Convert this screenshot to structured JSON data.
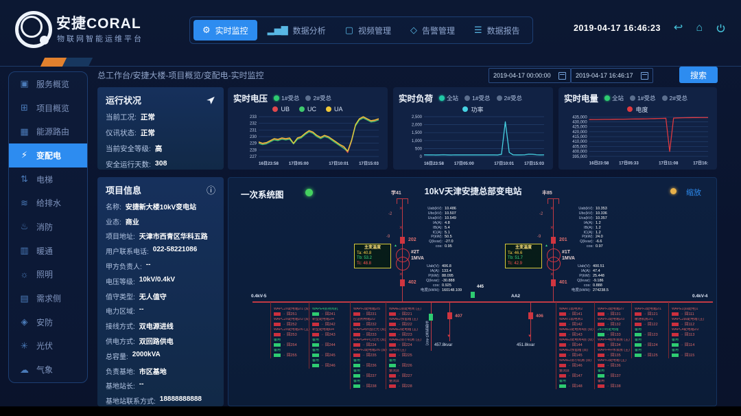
{
  "header": {
    "logo_title": "安捷CORAL",
    "logo_subtitle": "物联网智能运维平台",
    "datetime": "2019-04-17 16:46:23",
    "nav": [
      {
        "label": "实时监控",
        "icon": "gear-icon",
        "glyph": "⚙",
        "active": true
      },
      {
        "label": "数据分析",
        "icon": "bar-chart-icon",
        "glyph": "▂▅▇",
        "active": false
      },
      {
        "label": "视频管理",
        "icon": "monitor-icon",
        "glyph": "▢",
        "active": false
      },
      {
        "label": "告警管理",
        "icon": "shield-icon",
        "glyph": "◇",
        "active": false
      },
      {
        "label": "数据报告",
        "icon": "database-icon",
        "glyph": "☰",
        "active": false
      }
    ]
  },
  "sidebar": {
    "items": [
      {
        "label": "服务概览",
        "icon": "overview-icon",
        "glyph": "▣",
        "active": false
      },
      {
        "label": "项目概览",
        "icon": "projects-icon",
        "glyph": "⊞",
        "active": false
      },
      {
        "label": "能源路由",
        "icon": "energy-router-icon",
        "glyph": "▦",
        "active": false
      },
      {
        "label": "变配电",
        "icon": "power-distribution-icon",
        "glyph": "⚡",
        "active": true
      },
      {
        "label": "电梯",
        "icon": "elevator-icon",
        "glyph": "⇅",
        "active": false
      },
      {
        "label": "给排水",
        "icon": "water-icon",
        "glyph": "≋",
        "active": false
      },
      {
        "label": "消防",
        "icon": "fire-icon",
        "glyph": "♨",
        "active": false
      },
      {
        "label": "暖通",
        "icon": "hvac-icon",
        "glyph": "▥",
        "active": false
      },
      {
        "label": "照明",
        "icon": "lighting-icon",
        "glyph": "☼",
        "active": false
      },
      {
        "label": "需求侧",
        "icon": "demand-side-icon",
        "glyph": "▤",
        "active": false
      },
      {
        "label": "安防",
        "icon": "security-icon",
        "glyph": "◈",
        "active": false
      },
      {
        "label": "光伏",
        "icon": "solar-icon",
        "glyph": "✳",
        "active": false
      },
      {
        "label": "气象",
        "icon": "weather-icon",
        "glyph": "☁",
        "active": false
      }
    ]
  },
  "toolbar": {
    "breadcrumb": "总工作台/安捷大楼-项目概览/变配电-实时监控",
    "date_from": "2019-04-17 00:00:00",
    "date_to": "2019-04-17 16:46:17",
    "search_label": "搜索"
  },
  "status_panel": {
    "title": "运行状况",
    "rows": [
      {
        "label": "当前工况",
        "value": "正常"
      },
      {
        "label": "仪讯状态",
        "value": "正常"
      },
      {
        "label": "当前安全等级",
        "value": "高"
      },
      {
        "label": "安全运行天数",
        "value": "308"
      }
    ]
  },
  "project_panel": {
    "title": "项目信息",
    "rows": [
      {
        "label": "名称",
        "value": "安捷新大楼10kV变电站"
      },
      {
        "label": "业态",
        "value": "商业"
      },
      {
        "label": "项目地址",
        "value": "天津市西青区华科五路"
      },
      {
        "label": "用户联系电话",
        "value": "022-58221086"
      },
      {
        "label": "甲方负责人",
        "value": "--"
      },
      {
        "label": "电压等级",
        "value": "10kV/0.4kV"
      },
      {
        "label": "值守类型",
        "value": "无人值守"
      },
      {
        "label": "电力区域",
        "value": "--"
      },
      {
        "label": "接线方式",
        "value": "双电源进线"
      },
      {
        "label": "供电方式",
        "value": "双回路供电"
      },
      {
        "label": "总容量",
        "value": "2000kVA"
      },
      {
        "label": "负责基地",
        "value": "市区基地"
      },
      {
        "label": "基地站长",
        "value": "--"
      },
      {
        "label": "基地站联系方式",
        "value": "18888888888"
      }
    ]
  },
  "charts": [
    {
      "title": "实时电压",
      "toggles": [
        {
          "label": "1#受总",
          "on": true
        },
        {
          "label": "2#受总",
          "on": false
        }
      ],
      "toggle_on_color": "#2ecc71",
      "chart_data": {
        "type": "line",
        "ylim": [
          227,
          233
        ],
        "yticks": [
          227,
          228,
          229,
          230,
          231,
          232,
          233
        ],
        "ytick_labels": [
          "227",
          "228",
          "229",
          "230",
          "231",
          "232",
          "233"
        ],
        "xticks": [
          "16日23:58",
          "17日05:00",
          "17日10:01",
          "17日15:03"
        ],
        "series": [
          {
            "name": "UB",
            "color": "#e0484d",
            "values": [
              229.1,
              228.9,
              229.0,
              229.3,
              229.6,
              229.5,
              229.7,
              229.6,
              229.7,
              228.9,
              229.7,
              229.9,
              230.4,
              230.8,
              230.6,
              230.1,
              229.8,
              230.1,
              229.9,
              229.5,
              229.1,
              228.7,
              228.3,
              227.6,
              229.3,
              231.7,
              232.6,
              232.9,
              232.6,
              232.3,
              232.4,
              232.6
            ]
          },
          {
            "name": "UC",
            "color": "#3fc96e",
            "values": [
              229.0,
              228.8,
              228.9,
              229.2,
              229.5,
              229.4,
              229.6,
              229.5,
              229.6,
              228.9,
              229.6,
              229.8,
              230.3,
              230.7,
              230.5,
              230.0,
              229.7,
              230.0,
              229.8,
              229.4,
              229.0,
              228.6,
              228.2,
              227.8,
              229.4,
              231.6,
              232.5,
              232.8,
              232.5,
              232.2,
              232.3,
              232.5
            ]
          },
          {
            "name": "UA",
            "color": "#f0c838",
            "values": [
              229.2,
              229.0,
              229.1,
              229.4,
              229.7,
              229.6,
              229.8,
              229.7,
              229.8,
              229.0,
              229.8,
              230.0,
              230.5,
              230.9,
              230.7,
              230.2,
              229.9,
              230.2,
              230.0,
              229.6,
              229.2,
              228.8,
              228.5,
              227.8,
              229.5,
              231.8,
              232.7,
              233.0,
              232.7,
              232.4,
              232.5,
              232.7
            ]
          }
        ]
      }
    },
    {
      "title": "实时负荷",
      "toggles": [
        {
          "label": "全站",
          "on": true
        },
        {
          "label": "1#受总",
          "on": false
        },
        {
          "label": "2#受总",
          "on": false
        }
      ],
      "toggle_on_color": "#20c9a6",
      "chart_data": {
        "type": "line",
        "ylim": [
          0,
          2500
        ],
        "yticks": [
          0,
          500,
          1000,
          1500,
          2000,
          2500
        ],
        "ytick_labels": [
          "0",
          "500",
          "1,000",
          "1,500",
          "2,000",
          "2,500"
        ],
        "xticks": [
          "16日23:58",
          "17日05:00",
          "17日10:01",
          "17日15:03"
        ],
        "series": [
          {
            "name": "功率",
            "color": "#46d2e2",
            "values": [
              105,
              98,
              102,
              95,
              100,
              108,
              100,
              96,
              103,
              99,
              101,
              100,
              97,
              104,
              100,
              98,
              102,
              99,
              100,
              96,
              140,
              2180,
              260,
              105,
              98,
              100,
              104,
              150,
              145,
              108,
              100,
              102
            ]
          }
        ]
      }
    },
    {
      "title": "实时电量",
      "toggles": [
        {
          "label": "全站",
          "on": true
        },
        {
          "label": "1#受总",
          "on": false
        },
        {
          "label": "2#受总",
          "on": false
        }
      ],
      "toggle_on_color": "#2ecc71",
      "chart_data": {
        "type": "line",
        "ylim": [
          395000,
          435000
        ],
        "yticks": [
          395000,
          400000,
          405000,
          410000,
          415000,
          420000,
          425000,
          430000,
          435000
        ],
        "ytick_labels": [
          "395,000",
          "400,000",
          "405,000",
          "410,000",
          "415,000",
          "420,000",
          "425,000",
          "430,000",
          "435,000"
        ],
        "xticks": [
          "16日23:58",
          "17日05:33",
          "17日11:08",
          "17日16:"
        ],
        "series": [
          {
            "name": "电度",
            "color": "#e0393f",
            "values": [
              432300,
              432350,
              432400,
              432450,
              432500,
              432550,
              432600,
              432650,
              432700,
              432750,
              432800,
              432850,
              432900,
              432950,
              433000,
              433100,
              433200,
              433300,
              433400,
              433500,
              433600,
              400000,
              433800,
              434000,
              434100,
              434200,
              434250,
              434300,
              434300,
              434350,
              434400,
              434400
            ]
          }
        ]
      }
    }
  ],
  "diagram": {
    "panel_title": "一次系统图",
    "station_title": "10kV天津安捷总部变电站",
    "zoom_label": "缩放",
    "tie_breaker": "445",
    "incomers": [
      {
        "feeder": "学41",
        "disc1": "-2",
        "disc2": "-9",
        "breaker_hv": "202",
        "transformer": "#2T",
        "capacity": "1MVA",
        "breaker_lv": "402",
        "temp": {
          "title": "主变温度",
          "ta": "Ta:  40.8",
          "tb": "Tb:  53.2",
          "tc": "Tc:  48.8"
        },
        "hv_readout": [
          [
            "Uab(kV):",
            "10.486"
          ],
          [
            "Ubc(kV):",
            "10.507"
          ],
          [
            "Uca(kV):",
            "10.549"
          ],
          [
            "IA(A):",
            "4.8"
          ],
          [
            "IB(A):",
            "5.4"
          ],
          [
            "IC(A):",
            "5.1"
          ],
          [
            "P(kW):",
            "50.5"
          ],
          [
            "Q(kvar):",
            "-27.0"
          ],
          [
            "cos:",
            "0.95"
          ]
        ],
        "lv_readout": [
          [
            "Uab(V):",
            "406.8"
          ],
          [
            "IA(A):",
            "133.4"
          ],
          [
            "P(kW):",
            "88.095"
          ],
          [
            "Q(kvar):",
            "-30.888"
          ],
          [
            "cos:",
            "0.925"
          ],
          [
            "电度(kWH):",
            "160148.109"
          ]
        ]
      },
      {
        "feeder": "丰85",
        "disc1": "-2",
        "disc2": "-9",
        "breaker_hv": "201",
        "transformer": "#1T",
        "capacity": "1MVA",
        "breaker_lv": "401",
        "temp": {
          "title": "主变温度",
          "ta": "Ta:  46.6",
          "tb": "Tb:  51.7",
          "tc": "Tc:  42.9"
        },
        "hv_readout": [
          [
            "Uab(kV):",
            "10.353"
          ],
          [
            "Ubc(kV):",
            "10.336"
          ],
          [
            "Uca(kV):",
            "10.357"
          ],
          [
            "IA(A):",
            "1.2"
          ],
          [
            "IB(A):",
            "1.2"
          ],
          [
            "IC(A):",
            "1.2"
          ],
          [
            "P(kW):",
            "24.0"
          ],
          [
            "Q(kvar):",
            "-6.6"
          ],
          [
            "cos:",
            "0.97"
          ]
        ],
        "lv_readout": [
          [
            "Uab(V):",
            "400.51"
          ],
          [
            "IA(A):",
            "47.4"
          ],
          [
            "P(kW):",
            "25.448"
          ],
          [
            "Q(kvar):",
            "-9.186"
          ],
          [
            "cos:",
            "0.888"
          ],
          [
            "电度(kWH):",
            "274238.5"
          ]
        ]
      }
    ],
    "cap_banks": [
      {
        "breaker": "407",
        "kvar": "457.8kvar",
        "vlabel": "补偿电容(0.4kV)"
      },
      {
        "breaker": "406",
        "kvar": "451.8kvar",
        "vlabel": ""
      }
    ],
    "sections": [
      {
        "bus_label": "0.4kV-5",
        "bus_label_right": "",
        "columns": [
          [
            {
              "n": "WAPC2X配电箱2/1 (双)",
              "id": "回251",
              "s": "r"
            },
            {
              "n": "WAPC2X配电箱2/2 (双)",
              "id": "回252",
              "s": "r"
            },
            {
              "n": "WAPC2X配电箱2/6 (主)",
              "id": "回253",
              "s": "r"
            },
            {
              "n": "备用",
              "id": "回254",
              "s": "g"
            },
            {
              "n": "备用",
              "id": "回255",
              "s": "g"
            }
          ],
          [
            {
              "n": "WAPE4层排风机",
              "id": "回241",
              "s": "g"
            },
            {
              "n": "新型配电箱2/4",
              "id": "回242",
              "s": "r"
            },
            {
              "n": "新型配电箱6/4",
              "id": "回243",
              "s": "r"
            },
            {
              "n": "备用",
              "id": "回244",
              "s": "g"
            },
            {
              "n": "备用",
              "id": "回245",
              "s": "g"
            },
            {
              "n": "备用",
              "id": "回246",
              "s": "g"
            }
          ],
          [
            {
              "n": "WAPF2配电箱2/5",
              "id": "回231",
              "s": "r"
            },
            {
              "n": "应急照明箱2/2",
              "id": "回232",
              "s": "r"
            },
            {
              "n": "WAPG4外围泛光 (双)",
              "id": "回233",
              "s": "r"
            },
            {
              "n": "WAPG4中心泛光 (双)",
              "id": "回234",
              "s": "r"
            },
            {
              "n": "WAPF2配电箱2/6 (双)",
              "id": "回235",
              "s": "r"
            },
            {
              "n": "备用",
              "id": "回236",
              "s": "g"
            },
            {
              "n": "备用",
              "id": "回237",
              "s": "g"
            },
            {
              "n": "备用",
              "id": "回238",
              "s": "g"
            }
          ],
          [
            {
              "n": "WAAE1层配电间 (主)",
              "id": "回221",
              "s": "r"
            },
            {
              "n": "WAAE2预留箱 (主)",
              "id": "回222",
              "s": "r"
            },
            {
              "n": "WAAE2配电箱 (主)",
              "id": "回223",
              "s": "r"
            },
            {
              "n": "WAAE2层小机房 (主)",
              "id": "回224",
              "s": "r"
            },
            {
              "n": "弱电间 (主)",
              "id": "回225",
              "s": "r"
            },
            {
              "n": "备用",
              "id": "回226",
              "s": "g"
            },
            {
              "n": "整流屏",
              "id": "回227",
              "s": "r"
            },
            {
              "n": "整流屏",
              "id": "回228",
              "s": "r"
            }
          ]
        ]
      },
      {
        "bus_label": "AA2",
        "bus_label_right": "0.4kV-4",
        "columns": [
          [
            {
              "n": "WAAT1弱电间2",
              "id": "回141",
              "s": "r"
            },
            {
              "n": "WAAT1弱电间1",
              "id": "回142",
              "s": "r"
            },
            {
              "n": "WAAE1配电间4层 (双)",
              "id": "回143",
              "s": "r"
            },
            {
              "n": "WAAE2配电间4层 (双)",
              "id": "回144",
              "s": "r"
            },
            {
              "n": "WAAE2预留箱 (双)",
              "id": "回145",
              "s": "r"
            },
            {
              "n": "WAAE2层小机房 (双)",
              "id": "回146",
              "s": "r"
            },
            {
              "n": "整流屏",
              "id": "回147",
              "s": "r"
            },
            {
              "n": "备用",
              "id": "回148",
              "s": "g"
            }
          ],
          [
            {
              "n": "WAPF2配电箱2/7",
              "id": "回131",
              "s": "r"
            },
            {
              "n": "WAPF2配电箱2/3",
              "id": "回132",
              "s": "r"
            },
            {
              "n": "24小时配电箱",
              "id": "回133",
              "s": "g"
            },
            {
              "n": "WAPF4给水泵房 (主)",
              "id": "回134",
              "s": "r"
            },
            {
              "n": "WAPF4中水泵房 (主)",
              "id": "回135",
              "s": "r"
            },
            {
              "n": "WAPF2配电箱 (主)",
              "id": "回136",
              "s": "r"
            },
            {
              "n": "备用",
              "id": "回137",
              "s": "g"
            },
            {
              "n": "备用",
              "id": "回138",
              "s": "r"
            }
          ],
          [
            {
              "n": "WAPF2配电箱2/1",
              "id": "回121",
              "s": "r"
            },
            {
              "n": "暖通机房2/1",
              "id": "回122",
              "s": "r"
            },
            {
              "n": "备用",
              "id": "回123",
              "s": "g"
            },
            {
              "n": "备用",
              "id": "回124",
              "s": "g"
            },
            {
              "n": "备用",
              "id": "回125",
              "s": "g"
            }
          ],
          [
            {
              "n": "WAPE1(四配电)1",
              "id": "回111",
              "s": "r"
            },
            {
              "n": "WAPC2四配电箱 (主)",
              "id": "回112",
              "s": "r"
            },
            {
              "n": "WAPC4配电箱2/2",
              "id": "回113",
              "s": "r"
            },
            {
              "n": "备用",
              "id": "回114",
              "s": "g"
            },
            {
              "n": "备用",
              "id": "回115",
              "s": "g"
            }
          ]
        ]
      }
    ]
  }
}
